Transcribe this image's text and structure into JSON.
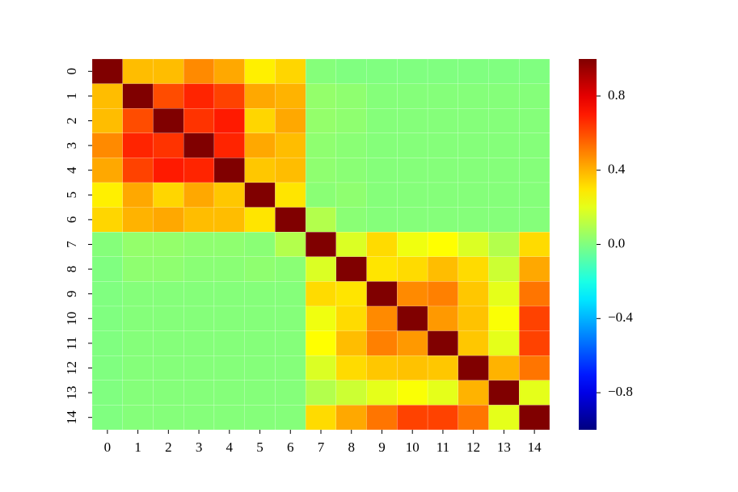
{
  "chart_data": {
    "type": "heatmap",
    "colormap": "jet",
    "x_labels": [
      "0",
      "1",
      "2",
      "3",
      "4",
      "5",
      "6",
      "7",
      "8",
      "9",
      "10",
      "11",
      "12",
      "13",
      "14"
    ],
    "y_labels": [
      "0",
      "1",
      "2",
      "3",
      "4",
      "5",
      "6",
      "7",
      "8",
      "9",
      "10",
      "11",
      "12",
      "13",
      "14"
    ],
    "values": [
      [
        1,
        0.38,
        0.38,
        0.48,
        0.42,
        0.28,
        0.33,
        0.01,
        0,
        0,
        0,
        0,
        0,
        0,
        0
      ],
      [
        0.38,
        1,
        0.6,
        0.68,
        0.62,
        0.42,
        0.4,
        0.04,
        0.03,
        0.01,
        0.01,
        0.01,
        0.01,
        0.01,
        0.01
      ],
      [
        0.38,
        0.6,
        1,
        0.65,
        0.7,
        0.33,
        0.42,
        0.04,
        0.03,
        0.01,
        0.01,
        0.01,
        0.01,
        0.01,
        0.01
      ],
      [
        0.48,
        0.68,
        0.65,
        1,
        0.68,
        0.42,
        0.38,
        0.03,
        0.02,
        0.01,
        0.01,
        0.01,
        0.01,
        0.01,
        0.01
      ],
      [
        0.42,
        0.62,
        0.7,
        0.68,
        1,
        0.36,
        0.38,
        0.03,
        0.02,
        0.01,
        0.01,
        0.01,
        0.01,
        0.01,
        0.01
      ],
      [
        0.28,
        0.42,
        0.33,
        0.42,
        0.36,
        1,
        0.3,
        0.02,
        0.03,
        0.01,
        0.01,
        0.01,
        0.01,
        0.01,
        0.01
      ],
      [
        0.33,
        0.4,
        0.42,
        0.38,
        0.38,
        0.3,
        1,
        0.1,
        0.02,
        0.01,
        0.01,
        0.01,
        0.01,
        0.01,
        0.01
      ],
      [
        0.01,
        0.04,
        0.04,
        0.03,
        0.03,
        0.02,
        0.1,
        1,
        0.18,
        0.32,
        0.22,
        0.25,
        0.18,
        0.1,
        0.32
      ],
      [
        0,
        0.03,
        0.03,
        0.02,
        0.02,
        0.03,
        0.02,
        0.18,
        1,
        0.3,
        0.32,
        0.38,
        0.32,
        0.15,
        0.42
      ],
      [
        0,
        0.01,
        0.01,
        0.01,
        0.01,
        0.01,
        0.01,
        0.32,
        0.3,
        1,
        0.48,
        0.5,
        0.36,
        0.2,
        0.52
      ],
      [
        0,
        0.01,
        0.01,
        0.01,
        0.01,
        0.01,
        0.01,
        0.22,
        0.32,
        0.48,
        1,
        0.45,
        0.37,
        0.24,
        0.62
      ],
      [
        0,
        0.01,
        0.01,
        0.01,
        0.01,
        0.01,
        0.01,
        0.25,
        0.38,
        0.5,
        0.45,
        1,
        0.36,
        0.2,
        0.62
      ],
      [
        0,
        0.01,
        0.01,
        0.01,
        0.01,
        0.01,
        0.01,
        0.18,
        0.32,
        0.36,
        0.37,
        0.36,
        1,
        0.4,
        0.52
      ],
      [
        0,
        0.01,
        0.01,
        0.01,
        0.01,
        0.01,
        0.01,
        0.1,
        0.15,
        0.2,
        0.24,
        0.2,
        0.4,
        1,
        0.2
      ],
      [
        0,
        0.01,
        0.01,
        0.01,
        0.01,
        0.01,
        0.01,
        0.32,
        0.42,
        0.52,
        0.62,
        0.62,
        0.52,
        0.2,
        1
      ]
    ],
    "clim": [
      -1,
      1
    ],
    "cticks": [
      {
        "value": -0.8,
        "label": "−0.8"
      },
      {
        "value": -0.4,
        "label": "−0.4"
      },
      {
        "value": 0,
        "label": "0.0"
      },
      0.4,
      0.8
    ]
  }
}
